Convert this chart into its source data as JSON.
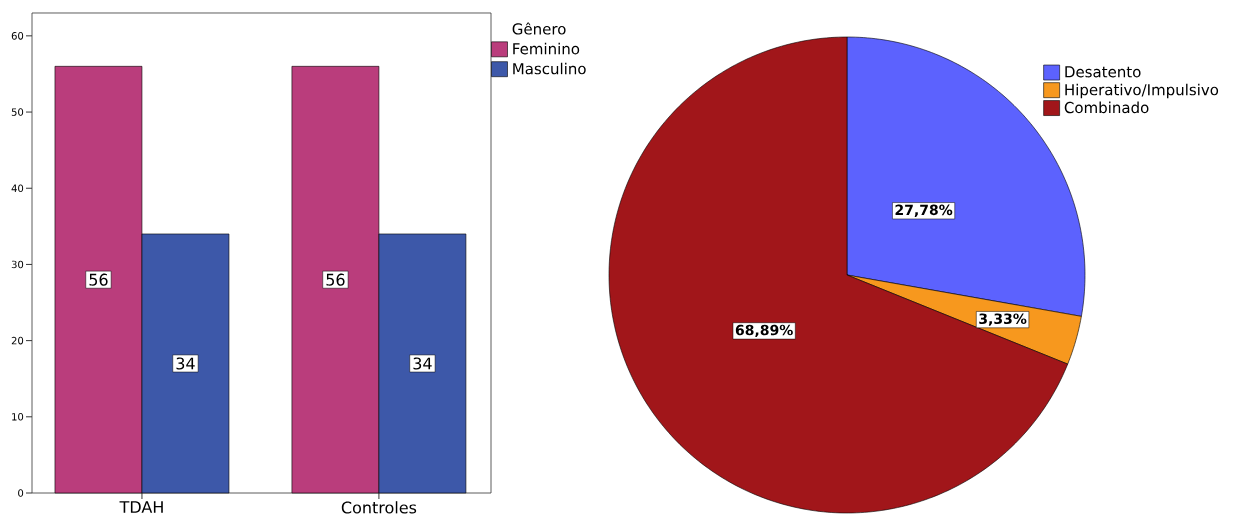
{
  "chart_data": [
    {
      "type": "bar",
      "categories": [
        "TDAH",
        "Controles"
      ],
      "legend_title": "Gênero",
      "series": [
        {
          "name": "Feminino",
          "color": "#ba3d7c",
          "values": [
            56,
            56
          ]
        },
        {
          "name": "Masculino",
          "color": "#3d58a9",
          "values": [
            34,
            34
          ]
        }
      ],
      "ylim": [
        0,
        63
      ],
      "yticks": [
        0,
        10,
        20,
        30,
        40,
        50,
        60
      ],
      "data_labels": true,
      "legend": "top right"
    },
    {
      "type": "pie",
      "categories": [
        "Desatento",
        "Hiperativo/Impulsivo",
        "Combinado"
      ],
      "values": [
        27.78,
        3.33,
        68.89
      ],
      "colors": [
        "#5c62fe",
        "#f7981e",
        "#a1161a"
      ],
      "value_labels": [
        "27,78%",
        "3,33%",
        "68,89%"
      ],
      "legend": "top right"
    }
  ]
}
